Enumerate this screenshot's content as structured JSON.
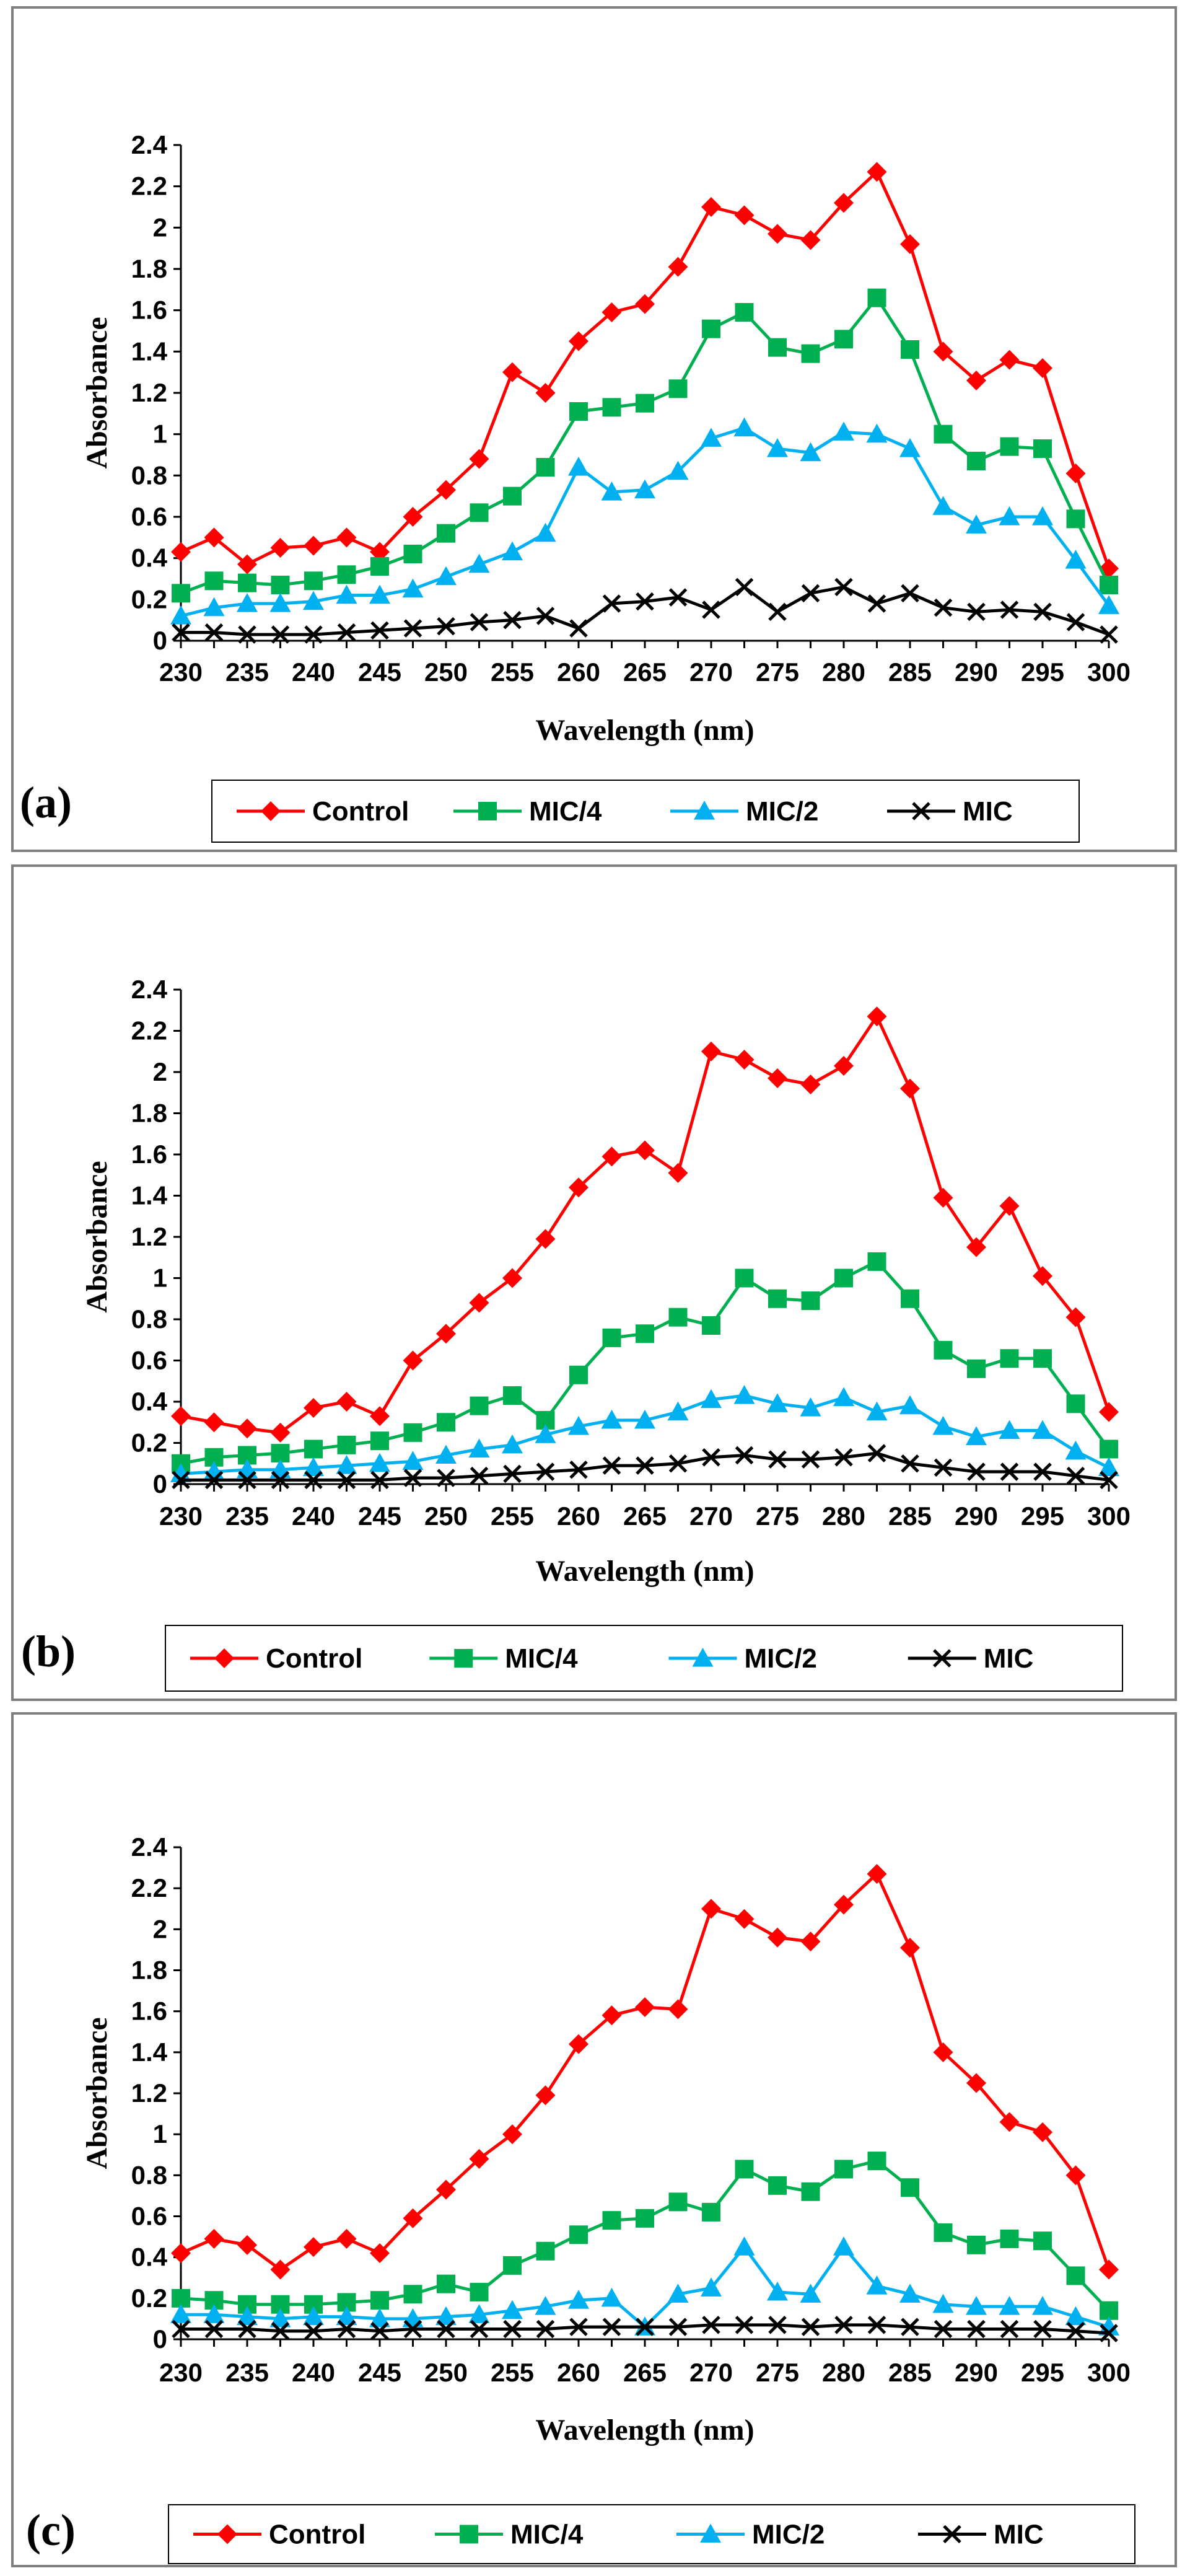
{
  "chart_data": [
    {
      "type": "line",
      "label": "(a)",
      "xlabel": "Wavelength (nm)",
      "ylabel": "Absorbance",
      "xlim": [
        230,
        300
      ],
      "ylim": [
        0,
        2.4
      ],
      "x_ticks": [
        230,
        235,
        240,
        245,
        250,
        255,
        260,
        265,
        270,
        275,
        280,
        285,
        290,
        295,
        300
      ],
      "y_ticks": [
        "0",
        "0.2",
        "0.4",
        "0.6",
        "0.8",
        "1",
        "1.2",
        "1.4",
        "1.6",
        "1.8",
        "2",
        "2.2",
        "2.4"
      ],
      "x": [
        230,
        232.5,
        235,
        237.5,
        240,
        242.5,
        245,
        247.5,
        250,
        252.5,
        255,
        257.5,
        260,
        262.5,
        265,
        267.5,
        270,
        272.5,
        275,
        277.5,
        280,
        282.5,
        285,
        287.5,
        290,
        292.5,
        295,
        297.5,
        300
      ],
      "series": [
        {
          "name": "Control",
          "color": "#ff0000",
          "marker": "diamond",
          "values": [
            0.43,
            0.5,
            0.37,
            0.45,
            0.46,
            0.5,
            0.43,
            0.6,
            0.73,
            0.88,
            1.3,
            1.2,
            1.45,
            1.59,
            1.63,
            1.81,
            2.1,
            2.06,
            1.97,
            1.94,
            2.12,
            2.27,
            1.92,
            1.4,
            1.26,
            1.36,
            1.32,
            0.81,
            0.35
          ]
        },
        {
          "name": "MIC/4",
          "color": "#00b050",
          "marker": "square",
          "values": [
            0.23,
            0.29,
            0.28,
            0.27,
            0.29,
            0.32,
            0.36,
            0.42,
            0.52,
            0.62,
            0.7,
            0.84,
            1.11,
            1.13,
            1.15,
            1.22,
            1.51,
            1.59,
            1.42,
            1.39,
            1.46,
            1.66,
            1.41,
            1.0,
            0.87,
            0.94,
            0.93,
            0.59,
            0.27
          ]
        },
        {
          "name": "MIC/2",
          "color": "#00b0f0",
          "marker": "triangle",
          "values": [
            0.12,
            0.16,
            0.18,
            0.18,
            0.19,
            0.22,
            0.22,
            0.25,
            0.31,
            0.37,
            0.43,
            0.52,
            0.84,
            0.72,
            0.73,
            0.82,
            0.98,
            1.03,
            0.93,
            0.91,
            1.01,
            1.0,
            0.93,
            0.65,
            0.56,
            0.6,
            0.6,
            0.39,
            0.17
          ]
        },
        {
          "name": "MIC",
          "color": "#000000",
          "marker": "x",
          "values": [
            0.04,
            0.04,
            0.03,
            0.03,
            0.03,
            0.04,
            0.05,
            0.06,
            0.07,
            0.09,
            0.1,
            0.12,
            0.06,
            0.18,
            0.19,
            0.21,
            0.15,
            0.26,
            0.14,
            0.23,
            0.26,
            0.18,
            0.23,
            0.16,
            0.14,
            0.15,
            0.14,
            0.09,
            0.03
          ]
        }
      ]
    },
    {
      "type": "line",
      "label": "(b)",
      "xlabel": "Wavelength (nm)",
      "ylabel": "Absorbance",
      "xlim": [
        230,
        300
      ],
      "ylim": [
        0,
        2.4
      ],
      "x_ticks": [
        230,
        235,
        240,
        245,
        250,
        255,
        260,
        265,
        270,
        275,
        280,
        285,
        290,
        295,
        300
      ],
      "y_ticks": [
        "0",
        "0.2",
        "0.4",
        "0.6",
        "0.8",
        "1",
        "1.2",
        "1.4",
        "1.6",
        "1.8",
        "2",
        "2.2",
        "2.4"
      ],
      "x": [
        230,
        232.5,
        235,
        237.5,
        240,
        242.5,
        245,
        247.5,
        250,
        252.5,
        255,
        257.5,
        260,
        262.5,
        265,
        267.5,
        270,
        272.5,
        275,
        277.5,
        280,
        282.5,
        285,
        287.5,
        290,
        292.5,
        295,
        297.5,
        300
      ],
      "series": [
        {
          "name": "Control",
          "color": "#ff0000",
          "marker": "diamond",
          "values": [
            0.33,
            0.3,
            0.27,
            0.25,
            0.37,
            0.4,
            0.33,
            0.6,
            0.73,
            0.88,
            1.0,
            1.19,
            1.44,
            1.59,
            1.62,
            1.51,
            2.1,
            2.06,
            1.97,
            1.94,
            2.03,
            2.27,
            1.92,
            1.39,
            1.15,
            1.35,
            1.01,
            0.81,
            0.35
          ]
        },
        {
          "name": "MIC/4",
          "color": "#00b050",
          "marker": "square",
          "values": [
            0.1,
            0.13,
            0.14,
            0.15,
            0.17,
            0.19,
            0.21,
            0.25,
            0.3,
            0.38,
            0.43,
            0.31,
            0.53,
            0.71,
            0.73,
            0.81,
            0.77,
            1.0,
            0.9,
            0.89,
            1.0,
            1.08,
            0.9,
            0.65,
            0.56,
            0.61,
            0.61,
            0.39,
            0.17
          ]
        },
        {
          "name": "MIC/2",
          "color": "#00b0f0",
          "marker": "triangle",
          "values": [
            0.05,
            0.06,
            0.07,
            0.07,
            0.08,
            0.09,
            0.1,
            0.11,
            0.14,
            0.17,
            0.19,
            0.24,
            0.28,
            0.31,
            0.31,
            0.35,
            0.41,
            0.43,
            0.39,
            0.37,
            0.42,
            0.35,
            0.38,
            0.28,
            0.23,
            0.26,
            0.26,
            0.16,
            0.08
          ]
        },
        {
          "name": "MIC",
          "color": "#000000",
          "marker": "x",
          "values": [
            0.02,
            0.02,
            0.02,
            0.02,
            0.02,
            0.02,
            0.02,
            0.03,
            0.03,
            0.04,
            0.05,
            0.06,
            0.07,
            0.09,
            0.09,
            0.1,
            0.13,
            0.14,
            0.12,
            0.12,
            0.13,
            0.15,
            0.1,
            0.08,
            0.06,
            0.06,
            0.06,
            0.04,
            0.02
          ]
        }
      ]
    },
    {
      "type": "line",
      "label": "(c)",
      "xlabel": "Wavelength (nm)",
      "ylabel": "Absorbance",
      "xlim": [
        230,
        300
      ],
      "ylim": [
        0,
        2.4
      ],
      "x_ticks": [
        230,
        235,
        240,
        245,
        250,
        255,
        260,
        265,
        270,
        275,
        280,
        285,
        290,
        295,
        300
      ],
      "y_ticks": [
        "0",
        "0.2",
        "0.4",
        "0.6",
        "0.8",
        "1",
        "1.2",
        "1.4",
        "1.6",
        "1.8",
        "2",
        "2.2",
        "2.4"
      ],
      "x": [
        230,
        232.5,
        235,
        237.5,
        240,
        242.5,
        245,
        247.5,
        250,
        252.5,
        255,
        257.5,
        260,
        262.5,
        265,
        267.5,
        270,
        272.5,
        275,
        277.5,
        280,
        282.5,
        285,
        287.5,
        290,
        292.5,
        295,
        297.5,
        300
      ],
      "series": [
        {
          "name": "Control",
          "color": "#ff0000",
          "marker": "diamond",
          "values": [
            0.42,
            0.49,
            0.46,
            0.34,
            0.45,
            0.49,
            0.42,
            0.59,
            0.73,
            0.88,
            1.0,
            1.19,
            1.44,
            1.58,
            1.62,
            1.61,
            2.1,
            2.05,
            1.96,
            1.94,
            2.12,
            2.27,
            1.91,
            1.4,
            1.25,
            1.06,
            1.01,
            0.8,
            0.34
          ]
        },
        {
          "name": "MIC/4",
          "color": "#00b050",
          "marker": "square",
          "values": [
            0.2,
            0.19,
            0.17,
            0.17,
            0.17,
            0.18,
            0.19,
            0.22,
            0.27,
            0.23,
            0.36,
            0.43,
            0.51,
            0.58,
            0.59,
            0.67,
            0.62,
            0.83,
            0.75,
            0.72,
            0.83,
            0.87,
            0.74,
            0.52,
            0.46,
            0.49,
            0.48,
            0.31,
            0.14
          ]
        },
        {
          "name": "MIC/2",
          "color": "#00b0f0",
          "marker": "triangle",
          "values": [
            0.12,
            0.12,
            0.11,
            0.1,
            0.11,
            0.11,
            0.1,
            0.1,
            0.11,
            0.12,
            0.14,
            0.16,
            0.19,
            0.2,
            0.06,
            0.22,
            0.25,
            0.45,
            0.23,
            0.22,
            0.45,
            0.26,
            0.22,
            0.17,
            0.16,
            0.16,
            0.16,
            0.11,
            0.06
          ]
        },
        {
          "name": "MIC",
          "color": "#000000",
          "marker": "x",
          "values": [
            0.05,
            0.05,
            0.05,
            0.04,
            0.04,
            0.05,
            0.04,
            0.05,
            0.05,
            0.05,
            0.05,
            0.05,
            0.06,
            0.06,
            0.06,
            0.06,
            0.07,
            0.07,
            0.07,
            0.06,
            0.07,
            0.07,
            0.06,
            0.05,
            0.05,
            0.05,
            0.05,
            0.04,
            0.03
          ]
        }
      ]
    }
  ]
}
